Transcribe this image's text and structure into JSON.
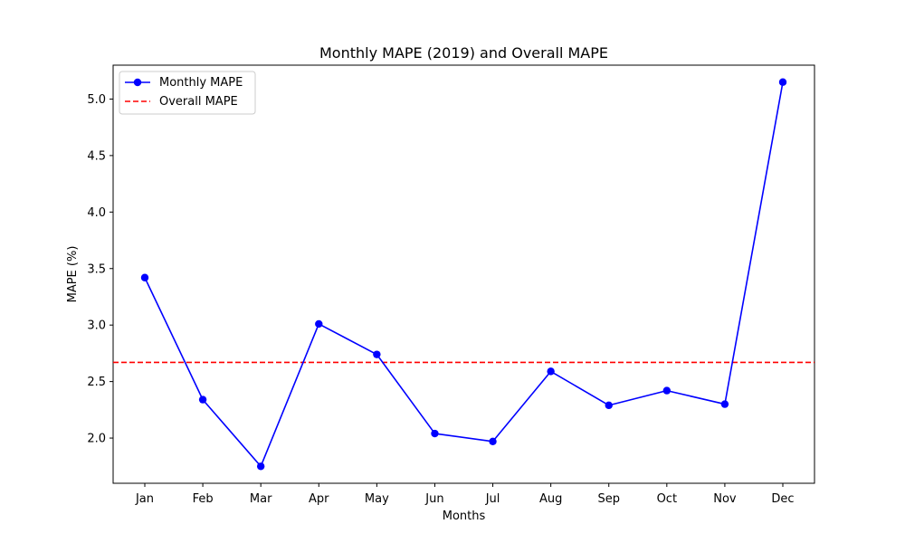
{
  "chart_data": {
    "type": "line",
    "title": "Monthly MAPE (2019) and Overall MAPE",
    "xlabel": "Months",
    "ylabel": "MAPE (%)",
    "categories": [
      "Jan",
      "Feb",
      "Mar",
      "Apr",
      "May",
      "Jun",
      "Jul",
      "Aug",
      "Sep",
      "Oct",
      "Nov",
      "Dec"
    ],
    "ylim": [
      1.6,
      5.3
    ],
    "yticks": [
      "2.0",
      "2.5",
      "3.0",
      "3.5",
      "4.0",
      "4.5",
      "5.0"
    ],
    "grid": false,
    "legend_position": "top-left",
    "series": [
      {
        "name": "Monthly MAPE",
        "style": "solid line with circle markers",
        "color": "#0000ff",
        "values": [
          3.42,
          2.34,
          1.75,
          3.01,
          2.74,
          2.04,
          1.97,
          2.59,
          2.29,
          2.42,
          2.3,
          5.15
        ]
      }
    ],
    "reference_lines": [
      {
        "name": "Overall MAPE",
        "style": "dashed horizontal line",
        "color": "#ff0000",
        "value": 2.67
      }
    ]
  }
}
